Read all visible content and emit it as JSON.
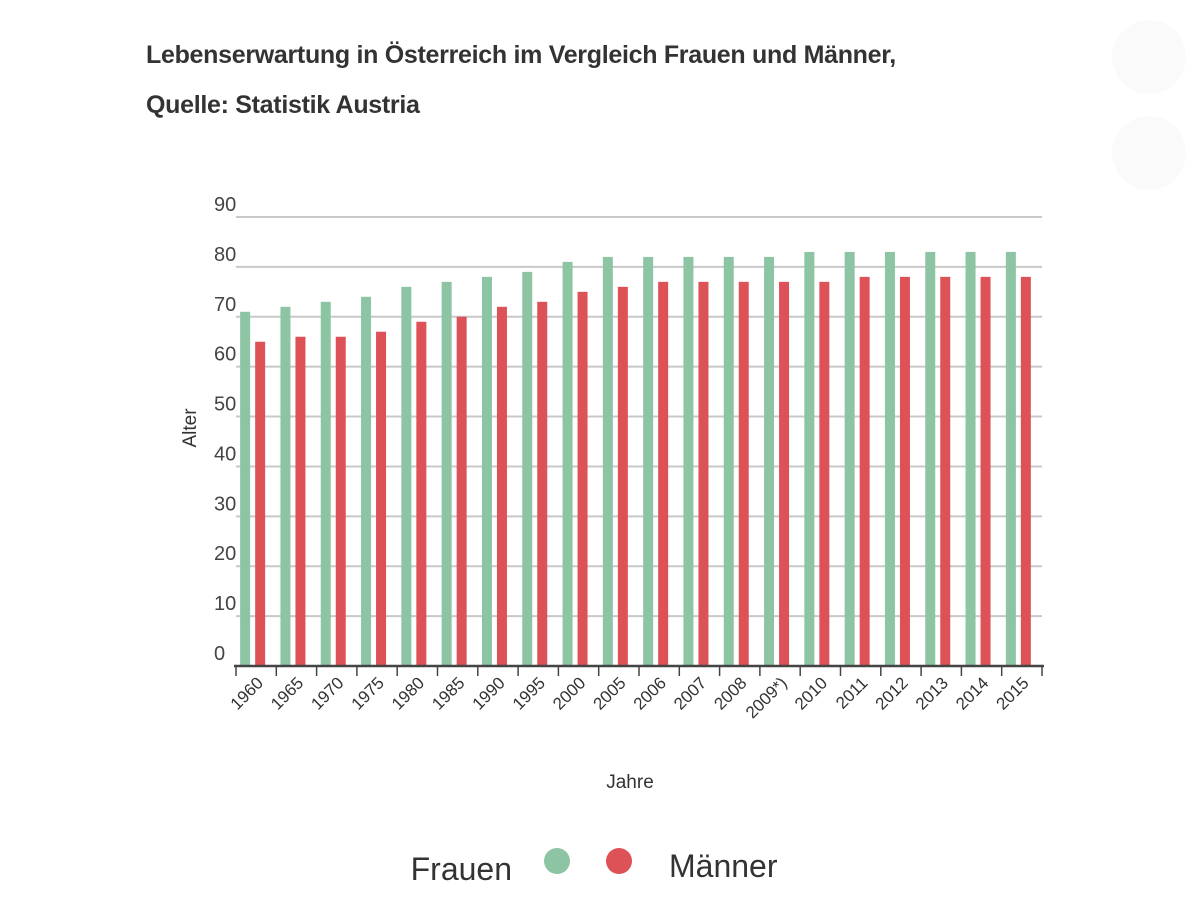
{
  "chart_data": {
    "type": "bar",
    "title": "Lebenserwartung in Österreich im Vergleich Frauen und Männer,",
    "subtitle": "Quelle: Statistik Austria",
    "xlabel": "Jahre",
    "ylabel": "Alter",
    "ylim": [
      0,
      90
    ],
    "yticks": [
      0,
      10,
      20,
      30,
      40,
      50,
      60,
      70,
      80,
      90
    ],
    "grid": true,
    "legend_position": "bottom",
    "categories": [
      "1960",
      "1965",
      "1970",
      "1975",
      "1980",
      "1985",
      "1990",
      "1995",
      "2000",
      "2005",
      "2006",
      "2007",
      "2008",
      "2009*)",
      "2010",
      "2011",
      "2012",
      "2013",
      "2014",
      "2015"
    ],
    "series": [
      {
        "name": "Frauen",
        "color": "#8dc4a4",
        "values": [
          71,
          72,
          73,
          74,
          76,
          77,
          78,
          79,
          81,
          82,
          82,
          82,
          82,
          82,
          83,
          83,
          83,
          83,
          83,
          83
        ]
      },
      {
        "name": "Männer",
        "color": "#dd5257",
        "values": [
          65,
          66,
          66,
          67,
          69,
          70,
          72,
          73,
          75,
          76,
          77,
          77,
          77,
          77,
          77,
          78,
          78,
          78,
          78,
          78
        ]
      }
    ]
  }
}
